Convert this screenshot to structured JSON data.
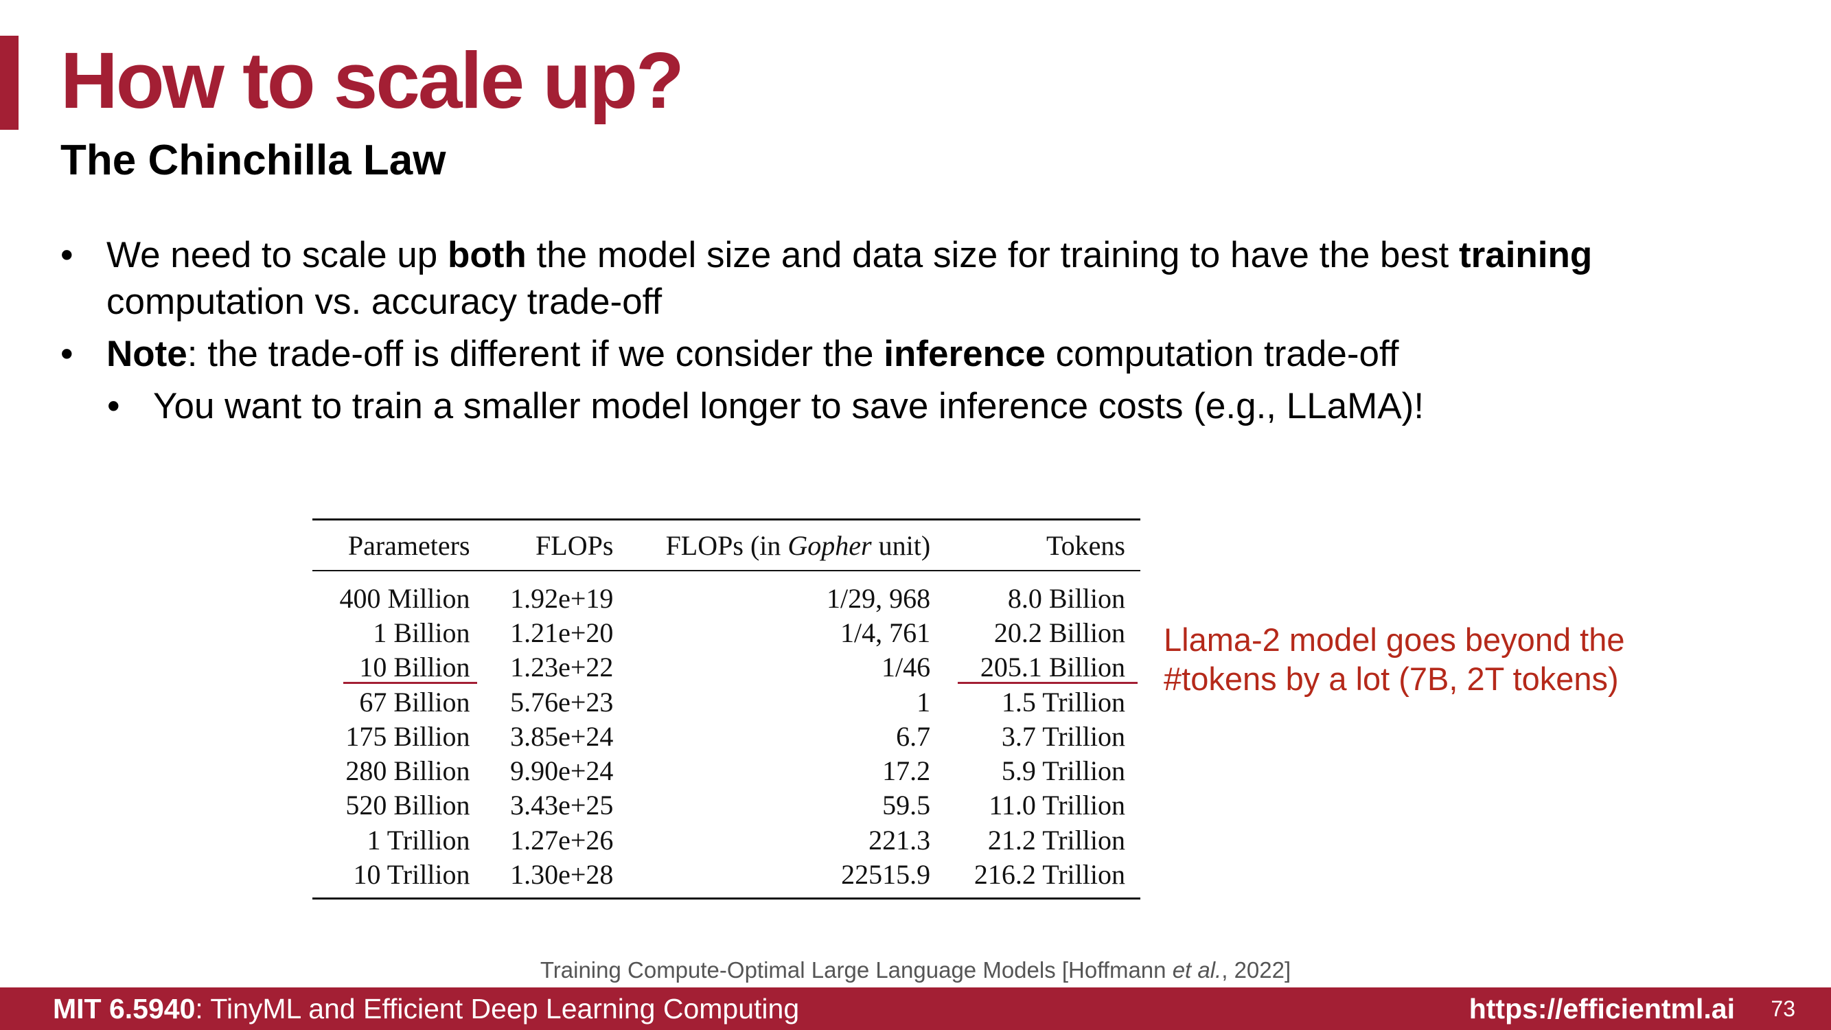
{
  "slide": {
    "title": "How to scale up?",
    "subtitle": "The Chinchilla Law"
  },
  "bullets": {
    "b1": {
      "t1": "We need to scale up ",
      "t2": "both",
      "t3": " the model size and data size for training to have the best ",
      "t4": "training",
      "t5": " computation vs. accuracy trade-off"
    },
    "b2": {
      "t1": "Note",
      "t2": ": the trade-off is different if we consider the ",
      "t3": "inference",
      "t4": " computation trade-off"
    },
    "b3": "You want to train a smaller model longer to save inference costs (e.g., LLaMA)!"
  },
  "table": {
    "headers": {
      "params": "Parameters",
      "flops": "FLOPs",
      "gopher_pre": "FLOPs (in ",
      "gopher_em": "Gopher",
      "gopher_post": " unit)",
      "tokens": "Tokens"
    },
    "rows": [
      {
        "params": "400 Million",
        "flops": "1.92e+19",
        "gopher": "1/29, 968",
        "tokens": "8.0 Billion"
      },
      {
        "params": "1 Billion",
        "flops": "1.21e+20",
        "gopher": "1/4, 761",
        "tokens": "20.2 Billion"
      },
      {
        "params": "10 Billion",
        "flops": "1.23e+22",
        "gopher": "1/46",
        "tokens": "205.1 Billion"
      },
      {
        "params": "67 Billion",
        "flops": "5.76e+23",
        "gopher": "1",
        "tokens": "1.5 Trillion"
      },
      {
        "params": "175 Billion",
        "flops": "3.85e+24",
        "gopher": "6.7",
        "tokens": "3.7 Trillion"
      },
      {
        "params": "280 Billion",
        "flops": "9.90e+24",
        "gopher": "17.2",
        "tokens": "5.9 Trillion"
      },
      {
        "params": "520 Billion",
        "flops": "3.43e+25",
        "gopher": "59.5",
        "tokens": "11.0 Trillion"
      },
      {
        "params": "1 Trillion",
        "flops": "1.27e+26",
        "gopher": "221.3",
        "tokens": "21.2 Trillion"
      },
      {
        "params": "10 Trillion",
        "flops": "1.30e+28",
        "gopher": "22515.9",
        "tokens": "216.2 Trillion"
      }
    ]
  },
  "annotation": "Llama-2 model goes beyond the #tokens by a lot (7B, 2T tokens)",
  "citation": {
    "pre": "Training Compute-Optimal Large Language Models [Hoffmann ",
    "em": "et al.",
    "post": ", 2022]"
  },
  "footer": {
    "course_code": "MIT 6.5940",
    "course_name": ": TinyML and Efficient Deep Learning Computing",
    "url": "https://efficientml.ai",
    "page": "73"
  },
  "colors": {
    "brand": "#a31f34",
    "annotation": "#b5291a"
  }
}
